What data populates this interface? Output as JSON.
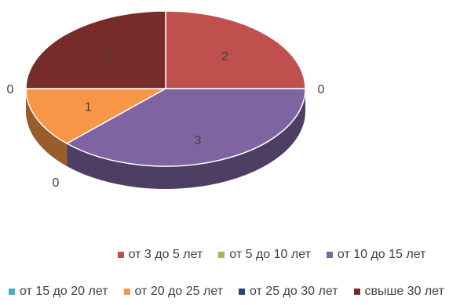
{
  "chart_data": {
    "type": "pie",
    "style": "3d",
    "title": "",
    "categories": [
      "от 3 до 5 лет",
      "от 5 до 10 лет",
      "от 10 до 15 лет",
      "от 15 до 20 лет",
      "от 20 до 25 лет",
      "от 25 до 30 лет",
      "свыше 30 лет"
    ],
    "values": [
      2,
      0,
      3,
      0,
      1,
      0,
      2
    ],
    "colors": [
      "#C0504D",
      "#9BBB59",
      "#8064A2",
      "#4BACC6",
      "#F79646",
      "#1F497D",
      "#772C2A"
    ],
    "data_labels": [
      "2",
      "0",
      "3",
      "0",
      "1",
      "0",
      "2"
    ],
    "legend_position": "bottom",
    "legend_rows": [
      [
        "от 3 до 5 лет",
        "от 5 до 10 лет",
        "от 10 до 15 лет"
      ],
      [
        "от 15 до 20 лет",
        "от 20 до 25 лет",
        "от 25 до 30 лет",
        "свыше 30 лет"
      ]
    ]
  }
}
